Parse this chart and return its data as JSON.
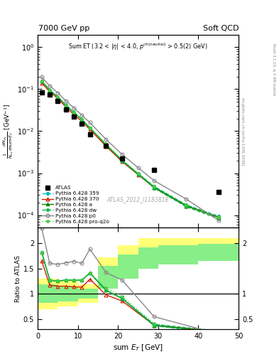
{
  "title_left": "7000 GeV pp",
  "title_right": "Soft QCD",
  "ylabel_main": "$\\frac{1}{N_{\\rm ev}}\\frac{dN_{\\rm ev}}{d{\\rm sum}\\,E_T}$ [GeV$^{-1}$]",
  "ylabel_ratio": "Ratio to ATLAS",
  "xlabel": "sum $E_T$ [GeV]",
  "watermark": "ATLAS_2012_I1183818",
  "xlim": [
    0,
    50
  ],
  "ylim_main": [
    5e-05,
    2.0
  ],
  "ylim_ratio": [
    0.3,
    2.3
  ],
  "atlas_x": [
    1,
    3,
    5,
    7,
    9,
    11,
    13,
    17,
    21,
    29,
    45
  ],
  "atlas_y": [
    0.085,
    0.075,
    0.052,
    0.033,
    0.022,
    0.015,
    0.0085,
    0.0045,
    0.0022,
    0.0012,
    0.00035
  ],
  "mc_x": [
    1,
    3,
    5,
    7,
    9,
    11,
    13,
    17,
    21,
    25,
    29,
    37,
    45
  ],
  "p359_y": [
    0.155,
    0.095,
    0.065,
    0.042,
    0.028,
    0.019,
    0.012,
    0.0048,
    0.002,
    0.00098,
    0.00048,
    0.000175,
    9.5e-05
  ],
  "p370_y": [
    0.14,
    0.088,
    0.06,
    0.038,
    0.025,
    0.017,
    0.011,
    0.0044,
    0.0019,
    0.00092,
    0.00045,
    0.000165,
    9e-05
  ],
  "pa_y": [
    0.155,
    0.095,
    0.065,
    0.042,
    0.028,
    0.019,
    0.012,
    0.0048,
    0.002,
    0.00096,
    0.00046,
    0.000168,
    8.8e-05
  ],
  "pdw_y": [
    0.155,
    0.095,
    0.065,
    0.042,
    0.028,
    0.019,
    0.012,
    0.0048,
    0.002,
    0.00095,
    0.00044,
    0.000158,
    8.2e-05
  ],
  "pp0_y": [
    0.195,
    0.12,
    0.082,
    0.053,
    0.036,
    0.024,
    0.016,
    0.0064,
    0.0028,
    0.00135,
    0.00066,
    0.00024,
    7.5e-05
  ],
  "pproq2o_y": [
    0.155,
    0.095,
    0.065,
    0.042,
    0.028,
    0.019,
    0.012,
    0.005,
    0.0021,
    0.001,
    0.00049,
    0.000178,
    9.2e-05
  ],
  "ratio_x": [
    1,
    3,
    5,
    7,
    9,
    11,
    13,
    17,
    21,
    29,
    45
  ],
  "r359_y": [
    1.82,
    1.27,
    1.25,
    1.27,
    1.27,
    1.27,
    1.41,
    1.07,
    0.91,
    0.4,
    0.27
  ],
  "r370_y": [
    1.65,
    1.17,
    1.15,
    1.15,
    1.14,
    1.13,
    1.29,
    0.98,
    0.86,
    0.38,
    0.26
  ],
  "ra_y": [
    1.82,
    1.27,
    1.25,
    1.27,
    1.27,
    1.27,
    1.41,
    1.07,
    0.91,
    0.38,
    0.25
  ],
  "rdw_y": [
    1.82,
    1.27,
    1.25,
    1.27,
    1.27,
    1.27,
    1.41,
    1.07,
    0.91,
    0.37,
    0.23
  ],
  "rp0_y": [
    2.29,
    1.6,
    1.58,
    1.61,
    1.64,
    1.6,
    1.88,
    1.42,
    1.27,
    0.55,
    0.21
  ],
  "rproq2o_y": [
    1.82,
    1.27,
    1.25,
    1.27,
    1.27,
    1.27,
    1.41,
    1.11,
    0.95,
    0.41,
    0.26
  ],
  "band_yellow_x": [
    0,
    5,
    10,
    15,
    20,
    25,
    30,
    40,
    50
  ],
  "band_yellow_lo": [
    0.7,
    0.75,
    0.82,
    1.28,
    1.55,
    1.72,
    1.8,
    1.85,
    1.88
  ],
  "band_yellow_hi": [
    1.3,
    1.25,
    1.18,
    1.72,
    1.95,
    2.1,
    2.1,
    2.1,
    2.1
  ],
  "band_green_x": [
    0,
    5,
    10,
    15,
    20,
    25,
    30,
    40,
    50
  ],
  "band_green_lo": [
    0.82,
    0.85,
    0.9,
    1.1,
    1.3,
    1.5,
    1.58,
    1.65,
    1.68
  ],
  "band_green_hi": [
    1.18,
    1.15,
    1.1,
    1.55,
    1.78,
    1.92,
    1.95,
    1.98,
    2.0
  ],
  "color_359": "#00bbbb",
  "color_370": "#cc2200",
  "color_a": "#008800",
  "color_dw": "#00bb44",
  "color_p0": "#888888",
  "color_proq2o": "#44cc44",
  "annotation_main": "Sum ET (3.2 < |#eta| < 4.0, p^{ch(neutral)} > 0.5(2) GeV)"
}
